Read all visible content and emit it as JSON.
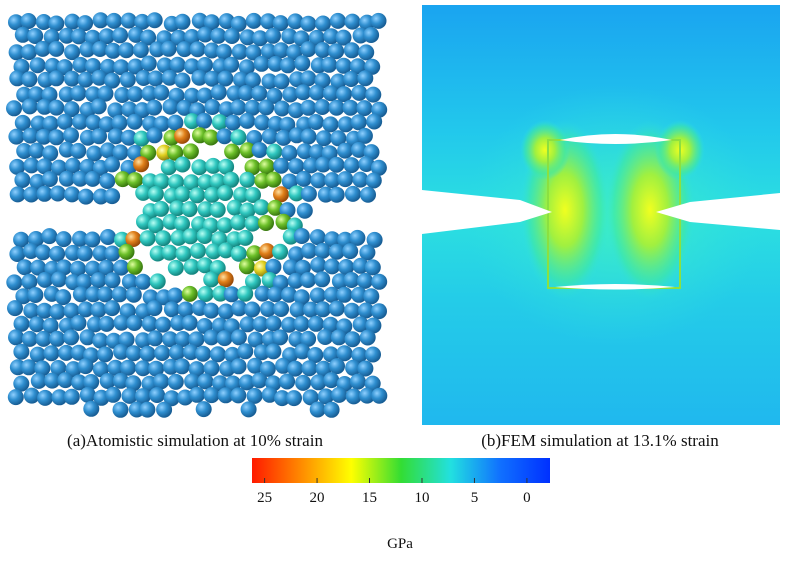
{
  "panels": [
    {
      "caption": "(a)Atomistic simulation at 10% strain"
    },
    {
      "caption": "(b)FEM simulation at 13.1% strain"
    }
  ],
  "colorbar": {
    "label": "GPa",
    "lim": [
      26.2,
      -2.2
    ],
    "ticks": [
      25,
      20,
      15,
      10,
      5,
      0
    ],
    "colors": [
      "#ff1a00",
      "#ff8c00",
      "#ffff00",
      "#33dd33",
      "#22e0e0",
      "#1070ff",
      "#0030ff"
    ]
  }
}
